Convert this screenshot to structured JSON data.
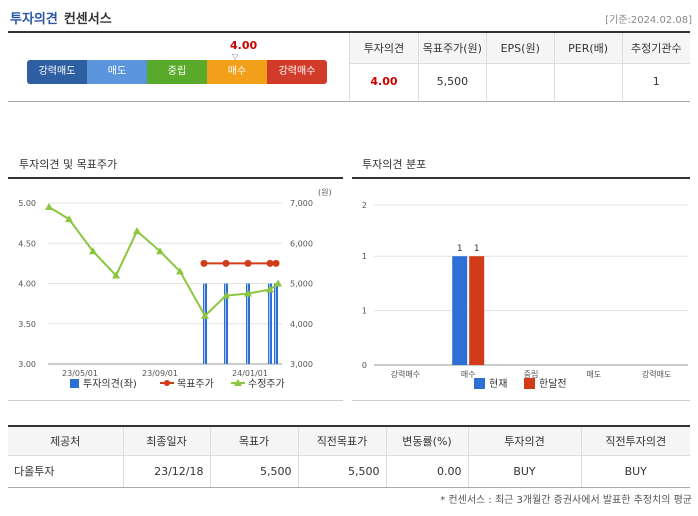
{
  "header": {
    "title": "투자의견",
    "subtitle": "컨센서스",
    "date": "[기준:2024.02.08]"
  },
  "scale": {
    "labels": [
      "강력매도",
      "매도",
      "중립",
      "매수",
      "강력매수"
    ],
    "colors": [
      "#2e5fa3",
      "#5b95db",
      "#5aab2b",
      "#f2a01a",
      "#d13b2a"
    ],
    "score": "4.00",
    "marker_glyph": "▽",
    "score_value": 4.0
  },
  "summary": {
    "headers": [
      "투자의견",
      "목표주가(원)",
      "EPS(원)",
      "PER(배)",
      "추정기관수"
    ],
    "values": [
      "4.00",
      "5,500",
      "",
      "",
      "1"
    ]
  },
  "left_panel": {
    "title": "투자의견 및 목표주가"
  },
  "right_panel": {
    "title": "투자의견 분포"
  },
  "chart_data": [
    {
      "type": "combo",
      "title": "투자의견 및 목표주가",
      "y_left": {
        "ticks": [
          "5.00",
          "4.50",
          "4.00",
          "3.50",
          "3.00"
        ],
        "range": [
          3.0,
          5.0
        ]
      },
      "y_right": {
        "unit": "(원)",
        "ticks": [
          "7,000",
          "6,000",
          "5,000",
          "4,000",
          "3,000"
        ],
        "range": [
          3000,
          7000
        ]
      },
      "x_labels": [
        "23/05/01",
        "23/09/01",
        "24/01/01"
      ],
      "series": [
        {
          "name": "투자의견(좌)",
          "type": "bar",
          "color": "#2e6fd6",
          "values": [
            4.0,
            4.0,
            4.0,
            4.0,
            4.0
          ]
        },
        {
          "name": "목표주가",
          "type": "line",
          "color": "#d13b1a",
          "values": [
            5500,
            5500,
            5500,
            5500,
            5500
          ]
        },
        {
          "name": "수정주가",
          "type": "line",
          "color": "#8cc63f",
          "values": [
            6900,
            6600,
            5800,
            5200,
            6300,
            5800,
            5300,
            4200,
            4700,
            4750,
            4850,
            5000
          ]
        }
      ],
      "legend_position": "bottom"
    },
    {
      "type": "bar",
      "title": "투자의견 분포",
      "categories": [
        "강력매수",
        "매수",
        "중립",
        "매도",
        "강력매도"
      ],
      "y_ticks": [
        "2",
        "1",
        "1",
        "0"
      ],
      "ylim": [
        0,
        2
      ],
      "series": [
        {
          "name": "현재",
          "color": "#2e6fd6",
          "values": [
            0,
            1,
            0,
            0,
            0
          ]
        },
        {
          "name": "한달전",
          "color": "#d13b1a",
          "values": [
            0,
            1,
            0,
            0,
            0
          ]
        }
      ],
      "data_labels": [
        "1",
        "1"
      ],
      "legend_position": "bottom"
    }
  ],
  "detail_table": {
    "headers": [
      "제공처",
      "최종일자",
      "목표가",
      "직전목표가",
      "변동률(%)",
      "투자의견",
      "직전투자의견"
    ],
    "rows": [
      [
        "다올투자",
        "23/12/18",
        "5,500",
        "5,500",
        "0.00",
        "BUY",
        "BUY"
      ]
    ]
  },
  "footnote": "* 컨센서스 : 최근 3개월간 증권사에서 발표한 추정치의 평균"
}
